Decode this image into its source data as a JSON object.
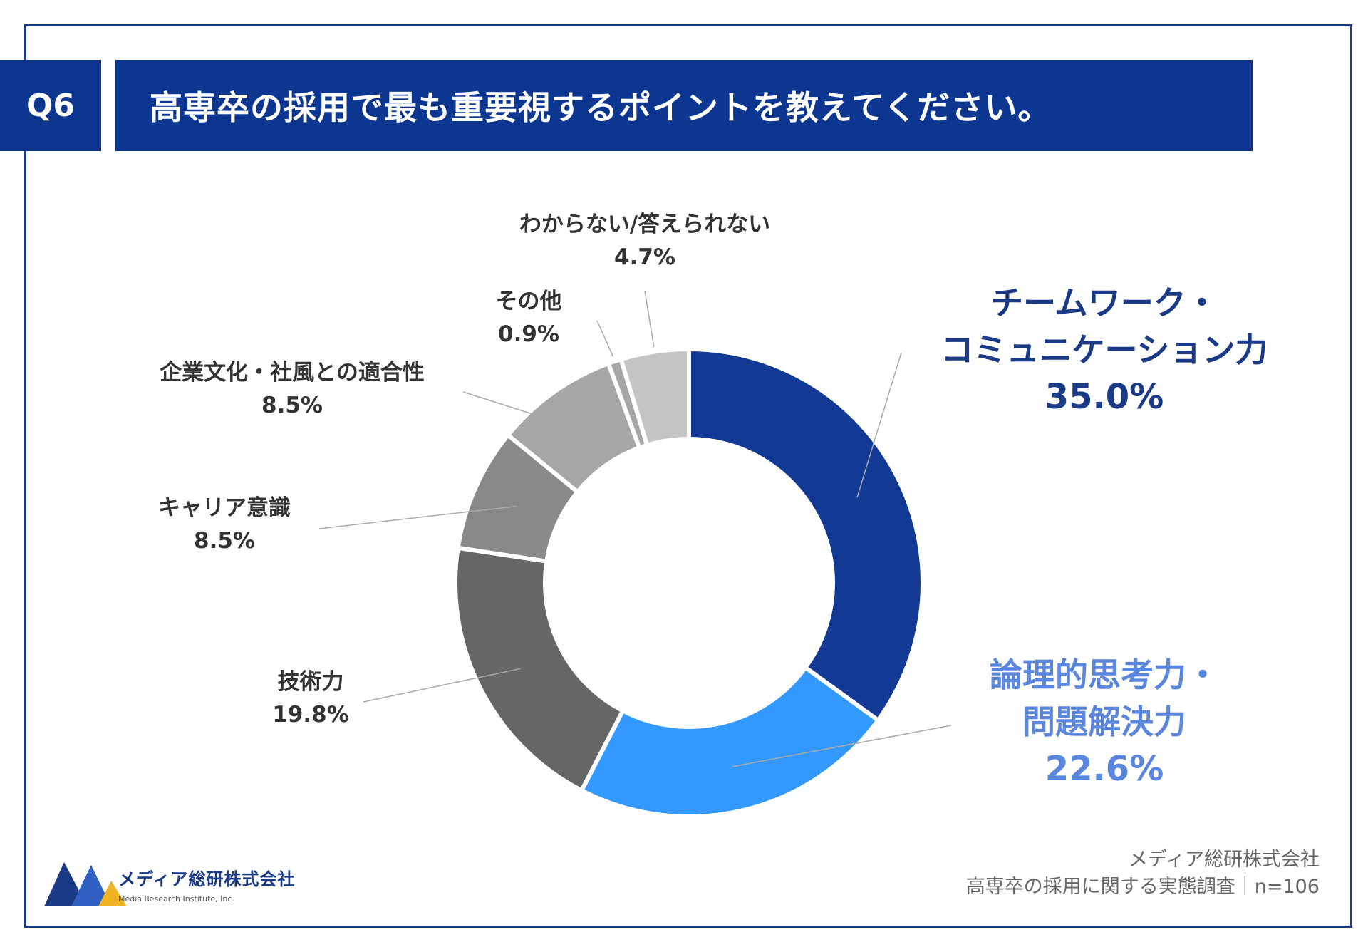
{
  "question": {
    "badge": "Q6",
    "title": "高専卒の採用で最も重要視するポイントを教えてください。"
  },
  "chart_data": {
    "type": "pie",
    "title": "高専卒の採用で最も重要視するポイントを教えてください。",
    "unit": "%",
    "categories": [
      "チームワーク・コミュニケーション力",
      "論理的思考力・問題解決力",
      "技術力",
      "キャリア意識",
      "企業文化・社風との適合性",
      "その他",
      "わからない/答えられない"
    ],
    "values": [
      35.0,
      22.6,
      19.8,
      8.5,
      8.5,
      0.9,
      4.7
    ],
    "colors": [
      "#123a95",
      "#3399ff",
      "#666666",
      "#898989",
      "#a6a6a6",
      "#a6a6a6",
      "#c4c4c4"
    ],
    "legend": "none"
  },
  "labels": [
    {
      "name_lines": [
        "チームワーク・",
        "コミュニケーション力"
      ],
      "value": "35.0%"
    },
    {
      "name_lines": [
        "論理的思考力・",
        "問題解決力"
      ],
      "value": "22.6%"
    },
    {
      "name_lines": [
        "技術力"
      ],
      "value": "19.8%"
    },
    {
      "name_lines": [
        "キャリア意識"
      ],
      "value": "8.5%"
    },
    {
      "name_lines": [
        "企業文化・社風との適合性"
      ],
      "value": "8.5%"
    },
    {
      "name_lines": [
        "その他"
      ],
      "value": "0.9%"
    },
    {
      "name_lines": [
        "わからない/答えられない"
      ],
      "value": "4.7%"
    }
  ],
  "label_colors": {
    "primary": "#1a3a86",
    "secondary": "#5b86de",
    "default": "#333333"
  },
  "logo": {
    "name": "メディア総研株式会社",
    "english": "Media Research Institute, Inc.",
    "icon": "mountain-m-logo-icon"
  },
  "source": {
    "line1": "メディア総研株式会社",
    "line2": "高専卒の採用に関する実態調査｜n=106"
  }
}
